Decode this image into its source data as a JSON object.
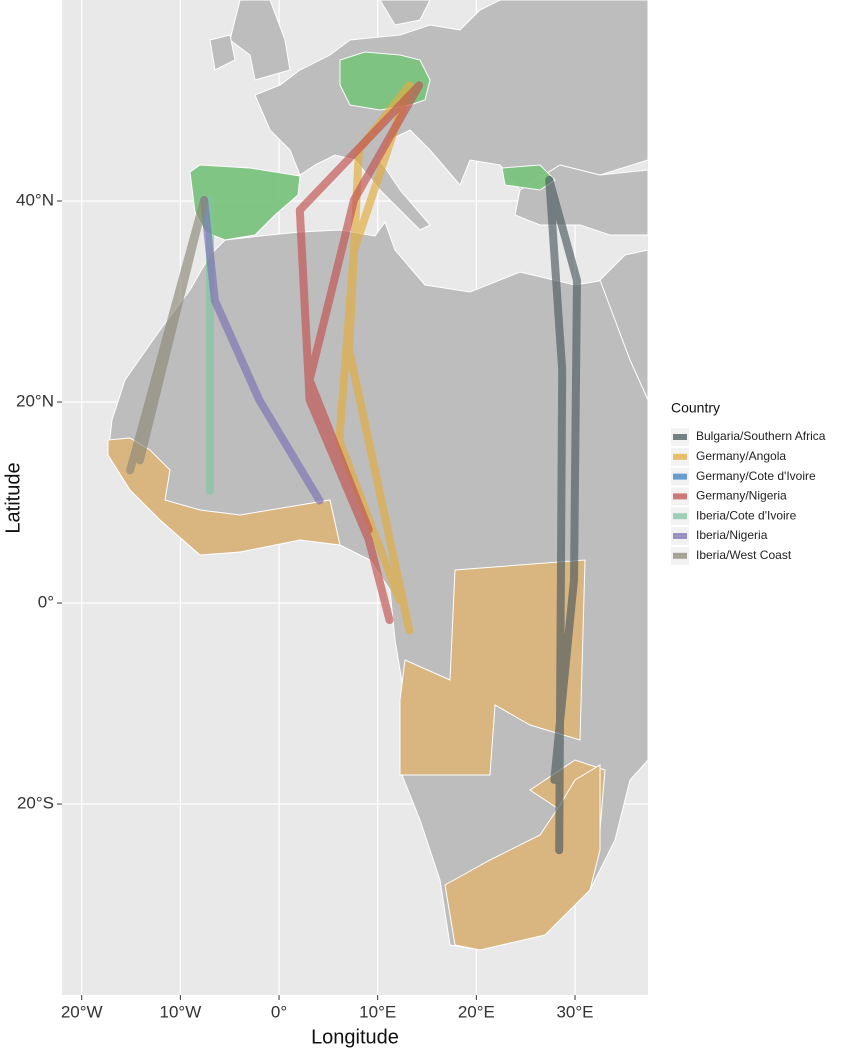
{
  "chart_data": {
    "type": "route-map",
    "x_label": "Longitude",
    "y_label": "Latitude",
    "xlim": [
      -22,
      37.4
    ],
    "ylim": [
      -39,
      60
    ],
    "xticks": [
      {
        "value": -20,
        "label": "20°W"
      },
      {
        "value": -10,
        "label": "10°W"
      },
      {
        "value": 0,
        "label": "0°"
      },
      {
        "value": 10,
        "label": "10°E"
      },
      {
        "value": 20,
        "label": "20°E"
      },
      {
        "value": 30,
        "label": "30°E"
      }
    ],
    "yticks": [
      {
        "value": 40,
        "label": "40°N"
      },
      {
        "value": 20,
        "label": "20°N"
      },
      {
        "value": 0,
        "label": "0°"
      },
      {
        "value": -20,
        "label": "20°S"
      }
    ],
    "grid": true,
    "legend_title": "Country",
    "legend_position": "right",
    "series": [
      {
        "name": "Bulgaria/Southern Africa",
        "color": "#4b5a60",
        "x": [
          27.4,
          28.7,
          28.4,
          null,
          27.4,
          30.2,
          29.9,
          27.9
        ],
        "y": [
          42.1,
          23.2,
          -24.6,
          null,
          42.1,
          32.1,
          2.3,
          -17.6
        ]
      },
      {
        "name": "Germany/Angola",
        "color": "#e3ac3c",
        "x": [
          13.2,
          7.6,
          6.1,
          12.2,
          null,
          13.2,
          8.1,
          7.1,
          13.2
        ],
        "y": [
          51.5,
          35.1,
          16.2,
          0.3,
          null,
          51.5,
          45.1,
          25.2,
          -2.7
        ]
      },
      {
        "name": "Germany/Cote d'Ivoire",
        "color": "#3a80c4",
        "x": [],
        "y": []
      },
      {
        "name": "Germany/Nigeria",
        "color": "#c0504d",
        "x": [
          14.2,
          2.1,
          3.1,
          9.1,
          11.2,
          null,
          14.2,
          7.6,
          3.1,
          9.1
        ],
        "y": [
          51.5,
          39.1,
          20.2,
          6.3,
          -1.7,
          null,
          51.5,
          40.1,
          22.2,
          7.3
        ]
      },
      {
        "name": "Iberia/Cote d'Ivoire",
        "color": "#7fc4a2",
        "x": [
          -7.0,
          -7.0
        ],
        "y": [
          40.1,
          11.2
        ]
      },
      {
        "name": "Iberia/Nigeria",
        "color": "#7a70b4",
        "x": [
          -7.6,
          -6.5,
          -2.0,
          4.1
        ],
        "y": [
          40.1,
          30.1,
          20.2,
          10.2
        ]
      },
      {
        "name": "Iberia/West Coast",
        "color": "#8c8878",
        "x": [
          -7.6,
          -15.1,
          null,
          -7.6,
          -14.1
        ],
        "y": [
          40.1,
          13.2,
          null,
          40.1,
          14.2
        ]
      }
    ]
  }
}
